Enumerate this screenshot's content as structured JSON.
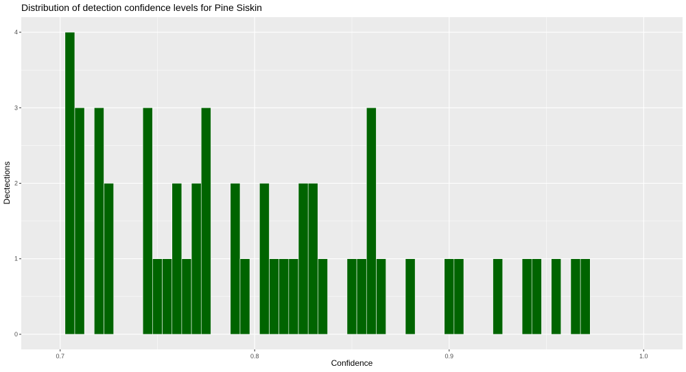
{
  "chart_data": {
    "type": "bar",
    "title": "Distribution of detection confidence levels for Pine Siskin",
    "xlabel": "Confidence",
    "ylabel": "Dectections",
    "xlim": [
      0.68,
      1.02
    ],
    "ylim": [
      -0.2,
      4.2
    ],
    "x_ticks": [
      0.7,
      0.8,
      0.9,
      1.0
    ],
    "x_tick_labels": [
      "0.7",
      "0.8",
      "0.9",
      "1.0"
    ],
    "y_ticks": [
      0,
      1,
      2,
      3,
      4
    ],
    "y_tick_labels": [
      "0",
      "1",
      "2",
      "3",
      "4"
    ],
    "bin_width": 0.005,
    "grid": true,
    "bar_color": "#006400",
    "panel_color": "#EBEBEB",
    "x": [
      0.705,
      0.71,
      0.72,
      0.725,
      0.745,
      0.75,
      0.755,
      0.76,
      0.765,
      0.77,
      0.775,
      0.79,
      0.795,
      0.805,
      0.81,
      0.815,
      0.82,
      0.825,
      0.83,
      0.835,
      0.85,
      0.855,
      0.86,
      0.865,
      0.88,
      0.9,
      0.905,
      0.925,
      0.94,
      0.945,
      0.955,
      0.965,
      0.97
    ],
    "values": [
      4,
      3,
      3,
      2,
      3,
      1,
      1,
      2,
      1,
      2,
      3,
      2,
      1,
      2,
      1,
      1,
      1,
      2,
      2,
      1,
      1,
      1,
      3,
      1,
      1,
      1,
      1,
      1,
      1,
      1,
      1,
      1,
      1
    ]
  }
}
